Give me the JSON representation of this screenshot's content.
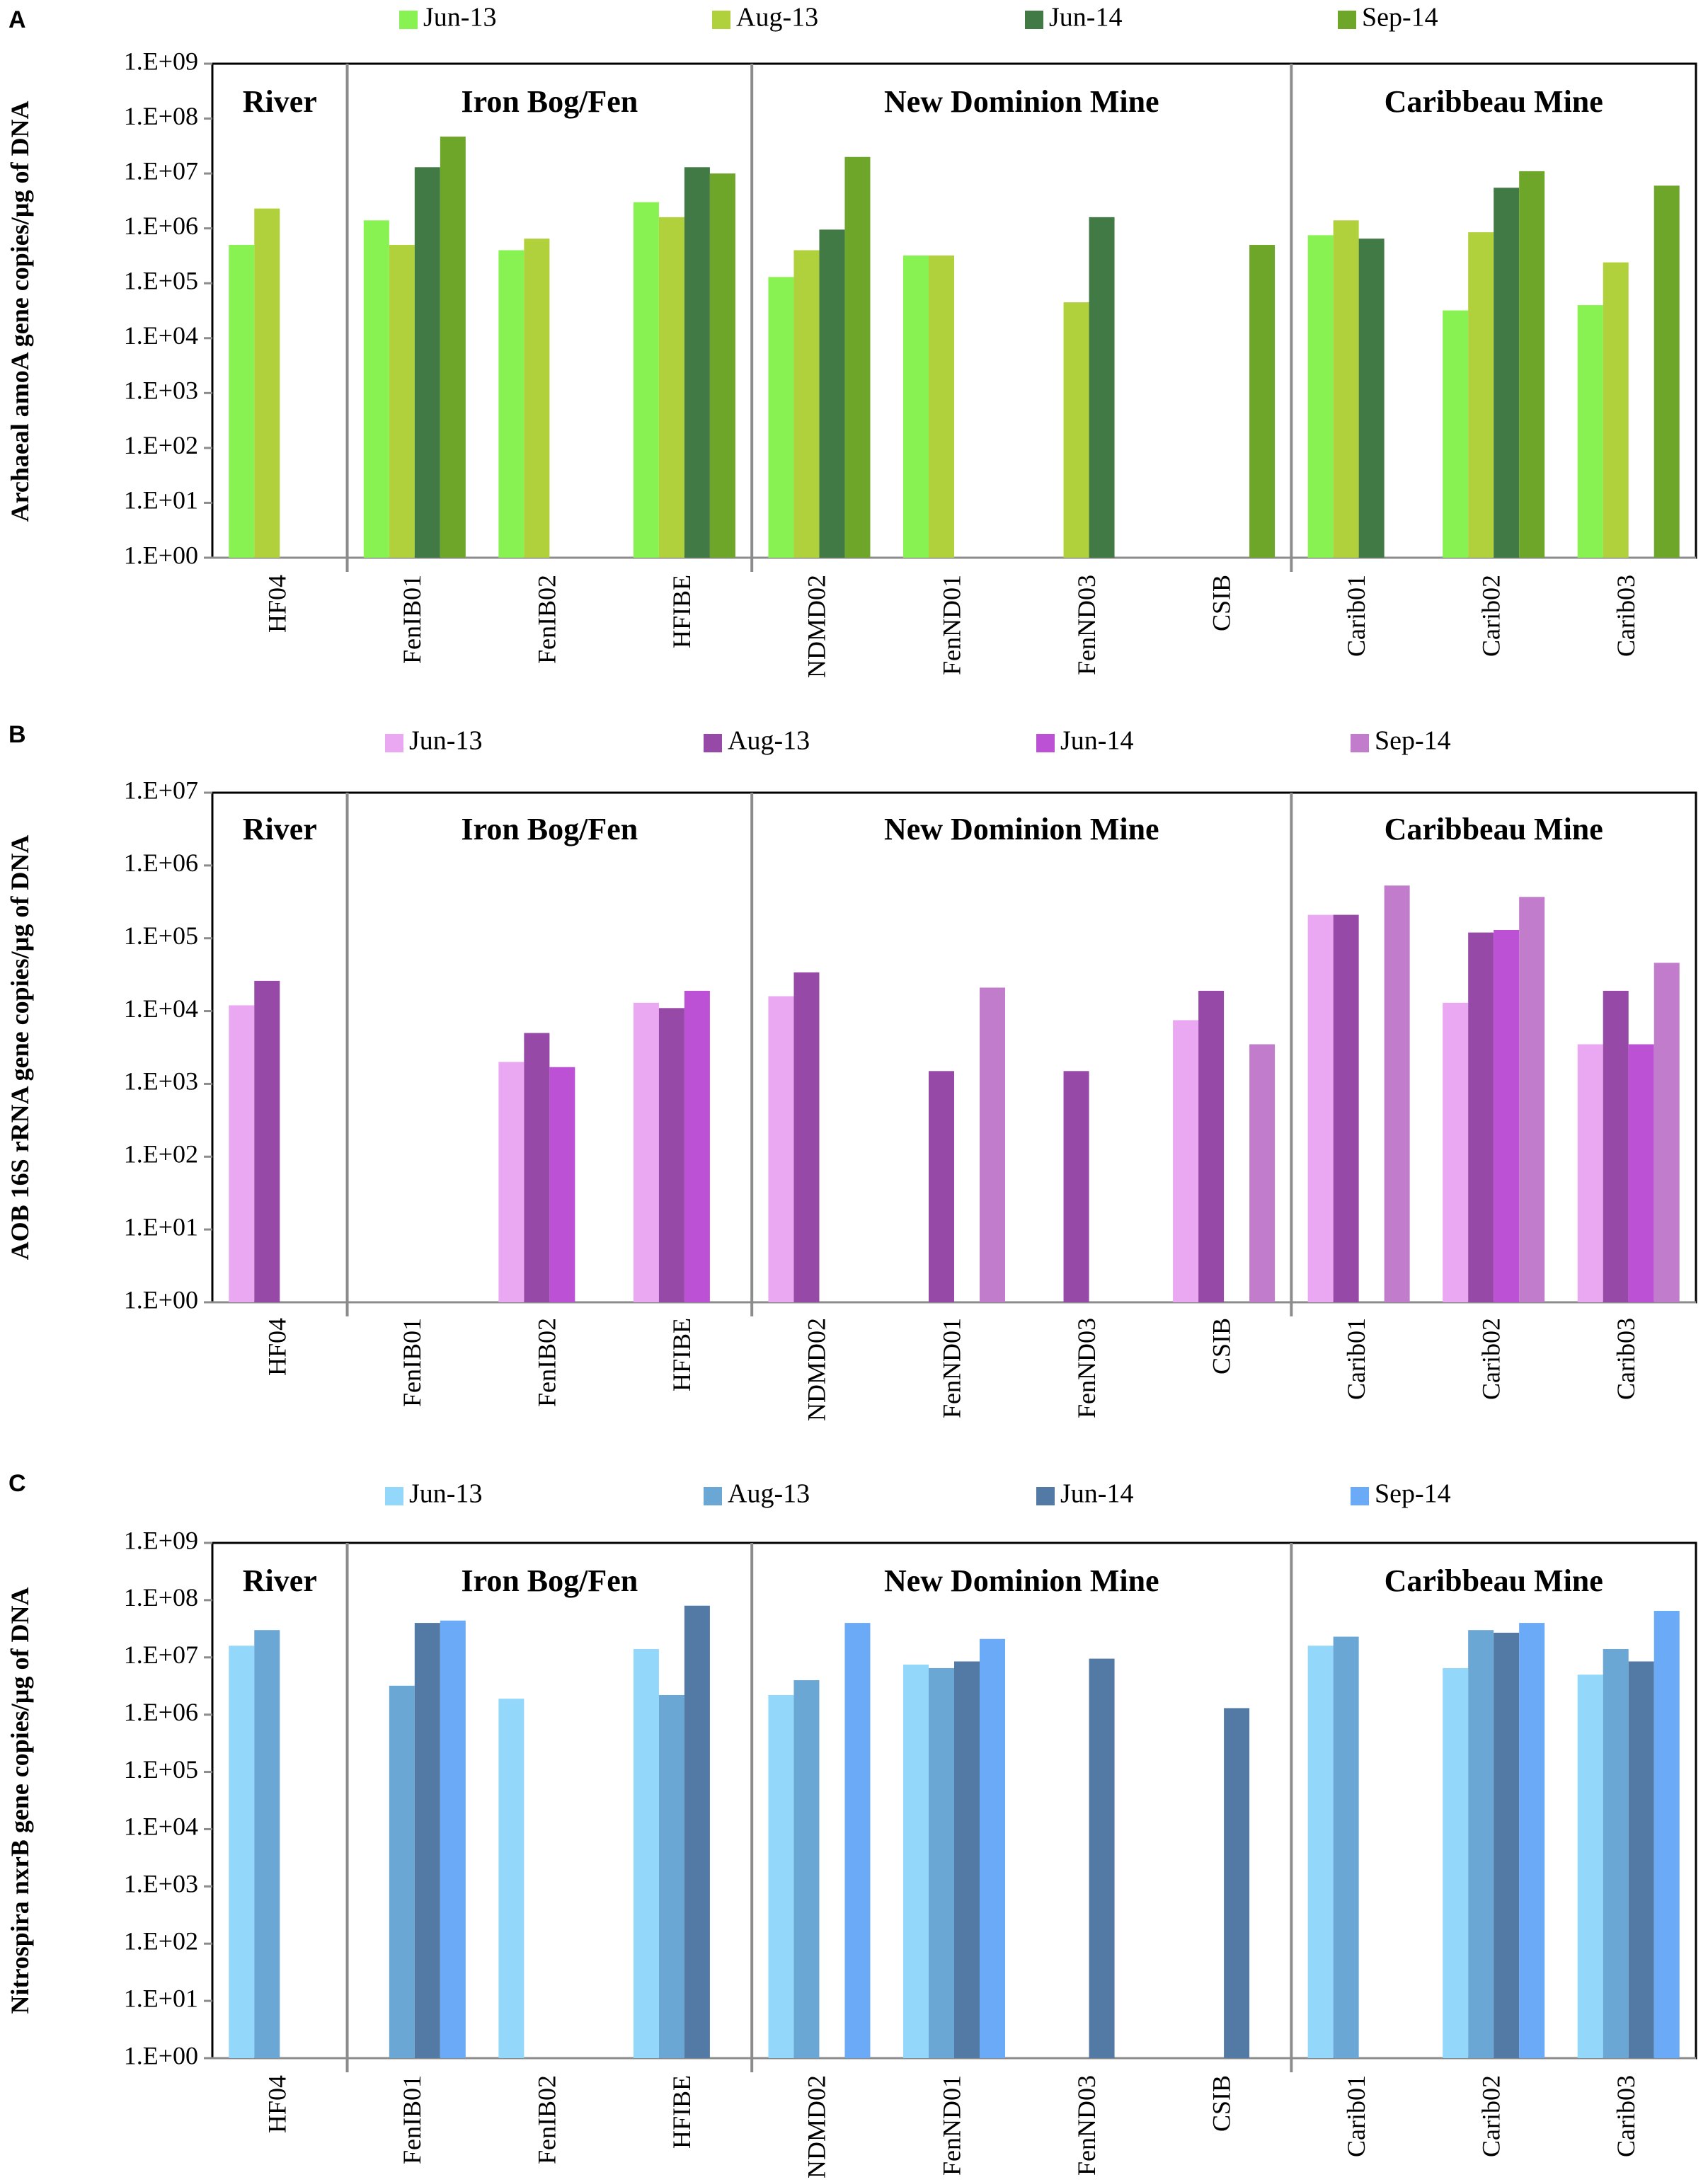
{
  "chart_data": [
    {
      "panel": "A",
      "type": "bar",
      "ylabel": "Archaeal amoA gene copies/µg of DNA",
      "yscale": "log10",
      "ylim": [
        1,
        1000000000
      ],
      "yticks": [
        "1.E+00",
        "1.E+01",
        "1.E+02",
        "1.E+03",
        "1.E+04",
        "1.E+05",
        "1.E+06",
        "1.E+07",
        "1.E+08",
        "1.E+09"
      ],
      "categories": [
        "HF04",
        "FenIB01",
        "FenIB02",
        "HFIBE",
        "NDMD02",
        "FenND01",
        "FenND03",
        "CSIB",
        "Carib01",
        "Carib02",
        "Carib03"
      ],
      "regions": [
        {
          "label": "River",
          "first": 0,
          "last": 0
        },
        {
          "label": "Iron Bog/Fen",
          "first": 1,
          "last": 3
        },
        {
          "label": "New Dominion Mine",
          "first": 4,
          "last": 7
        },
        {
          "label": "Caribbeau Mine",
          "first": 8,
          "last": 10
        }
      ],
      "series": [
        {
          "name": "Jun-13",
          "color": "#88f252",
          "values": [
            500000,
            1400000,
            400000,
            3000000,
            130000,
            320000,
            null,
            null,
            750000,
            32000,
            40000
          ]
        },
        {
          "name": "Aug-13",
          "color": "#b1d13c",
          "values": [
            2300000,
            500000,
            650000,
            1600000,
            400000,
            320000,
            45000,
            null,
            1400000,
            850000,
            240000
          ]
        },
        {
          "name": "Jun-14",
          "color": "#427a45",
          "values": [
            null,
            13000000,
            null,
            13000000,
            950000,
            null,
            1600000,
            null,
            650000,
            5500000,
            null
          ]
        },
        {
          "name": "Sep-14",
          "color": "#6ea62a",
          "values": [
            null,
            47000000,
            null,
            10000000,
            20000000,
            null,
            null,
            500000,
            null,
            11000000,
            6000000
          ]
        }
      ]
    },
    {
      "panel": "B",
      "type": "bar",
      "ylabel": "AOB 16S rRNA gene copies/µg of DNA",
      "yscale": "log10",
      "ylim": [
        1,
        10000000
      ],
      "yticks": [
        "1.E+00",
        "1.E+01",
        "1.E+02",
        "1.E+03",
        "1.E+04",
        "1.E+05",
        "1.E+06",
        "1.E+07"
      ],
      "categories": [
        "HF04",
        "FenIB01",
        "FenIB02",
        "HFIBE",
        "NDMD02",
        "FenND01",
        "FenND03",
        "CSIB",
        "Carib01",
        "Carib02",
        "Carib03"
      ],
      "regions": [
        {
          "label": "River",
          "first": 0,
          "last": 0
        },
        {
          "label": "Iron Bog/Fen",
          "first": 1,
          "last": 3
        },
        {
          "label": "New Dominion Mine",
          "first": 4,
          "last": 7
        },
        {
          "label": "Caribbeau Mine",
          "first": 8,
          "last": 10
        }
      ],
      "series": [
        {
          "name": "Jun-13",
          "color": "#eaa8f2",
          "values": [
            12000,
            null,
            2000,
            13000,
            16000,
            null,
            null,
            7500,
            210000,
            13000,
            3500
          ]
        },
        {
          "name": "Aug-13",
          "color": "#9649a6",
          "values": [
            26000,
            null,
            5000,
            11000,
            34000,
            1500,
            1500,
            19000,
            210000,
            120000,
            19000
          ]
        },
        {
          "name": "Jun-14",
          "color": "#bd51d6",
          "values": [
            null,
            null,
            1700,
            19000,
            null,
            null,
            null,
            null,
            null,
            130000,
            3500
          ]
        },
        {
          "name": "Sep-14",
          "color": "#c27ccc",
          "values": [
            null,
            null,
            null,
            null,
            null,
            21000,
            null,
            3500,
            530000,
            370000,
            46000
          ]
        }
      ]
    },
    {
      "panel": "C",
      "type": "bar",
      "ylabel": "Nitrospira nxrB gene copies/µg of DNA",
      "yscale": "log10",
      "ylim": [
        1,
        1000000000
      ],
      "yticks": [
        "1.E+00",
        "1.E+01",
        "1.E+02",
        "1.E+03",
        "1.E+04",
        "1.E+05",
        "1.E+06",
        "1.E+07",
        "1.E+08",
        "1.E+09"
      ],
      "categories": [
        "HF04",
        "FenIB01",
        "FenIB02",
        "HFIBE",
        "NDMD02",
        "FenND01",
        "FenND03",
        "CSIB",
        "Carib01",
        "Carib02",
        "Carib03"
      ],
      "regions": [
        {
          "label": "River",
          "first": 0,
          "last": 0
        },
        {
          "label": "Iron Bog/Fen",
          "first": 1,
          "last": 3
        },
        {
          "label": "New Dominion Mine",
          "first": 4,
          "last": 7
        },
        {
          "label": "Caribbeau Mine",
          "first": 8,
          "last": 10
        }
      ],
      "series": [
        {
          "name": "Jun-13",
          "color": "#93d7fb",
          "values": [
            16000000,
            null,
            1900000,
            14000000,
            2200000,
            7500000,
            null,
            null,
            16000000,
            6500000,
            5000000
          ]
        },
        {
          "name": "Aug-13",
          "color": "#6aa7d4",
          "values": [
            30000000,
            3200000,
            null,
            2200000,
            4000000,
            6500000,
            null,
            null,
            23000000,
            30000000,
            14000000
          ]
        },
        {
          "name": "Jun-14",
          "color": "#537aa5",
          "values": [
            null,
            40000000,
            null,
            80000000,
            null,
            8500000,
            9500000,
            1300000,
            null,
            27000000,
            8500000
          ]
        },
        {
          "name": "Sep-14",
          "color": "#6aaaf7",
          "values": [
            null,
            44000000,
            null,
            null,
            40000000,
            21000000,
            null,
            null,
            null,
            40000000,
            65000000
          ]
        }
      ]
    }
  ]
}
